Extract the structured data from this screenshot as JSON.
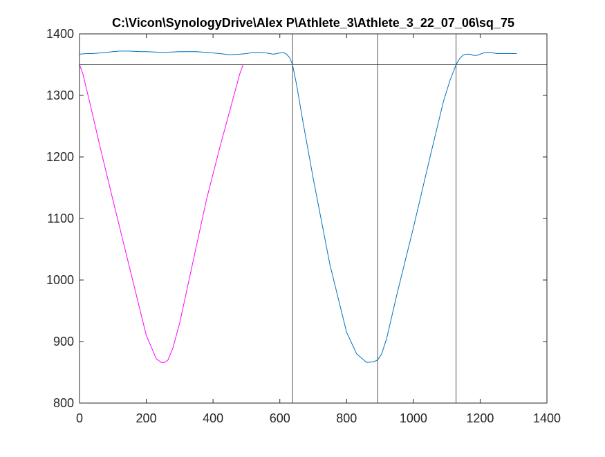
{
  "chart_data": {
    "type": "line",
    "title": "C:\\Vicon\\SynologyDrive\\Alex P\\Athlete_3\\Athlete_3_22_07_06\\sq_75",
    "xlabel": "",
    "ylabel": "",
    "xlim": [
      0,
      1400
    ],
    "ylim": [
      800,
      1400
    ],
    "xticks": [
      0,
      200,
      400,
      600,
      800,
      1000,
      1200,
      1400
    ],
    "yticks": [
      800,
      900,
      1000,
      1100,
      1200,
      1300,
      1400
    ],
    "grid": false,
    "legend": "none",
    "series": [
      {
        "color": "#0072BD",
        "x": [
          0,
          20,
          40,
          60,
          80,
          100,
          120,
          150,
          180,
          200,
          250,
          300,
          350,
          380,
          420,
          450,
          480,
          500,
          520,
          540,
          560,
          580,
          600,
          610,
          620,
          630,
          638,
          650,
          670,
          700,
          750,
          800,
          830,
          860,
          880,
          893,
          905,
          920,
          950,
          1000,
          1050,
          1090,
          1110,
          1128,
          1140,
          1150,
          1160,
          1170,
          1180,
          1190,
          1200,
          1210,
          1220,
          1230,
          1240,
          1250,
          1260,
          1280,
          1300,
          1310
        ],
        "y": [
          1367,
          1368,
          1368,
          1369,
          1370,
          1371,
          1372,
          1372,
          1371,
          1371,
          1370,
          1371,
          1371,
          1370,
          1368,
          1366,
          1367,
          1368,
          1370,
          1370,
          1369,
          1367,
          1369,
          1370,
          1367,
          1361,
          1350,
          1318,
          1255,
          1165,
          1025,
          915,
          880,
          866,
          867,
          870,
          880,
          905,
          975,
          1085,
          1200,
          1290,
          1325,
          1350,
          1361,
          1366,
          1367,
          1367,
          1365,
          1365,
          1367,
          1369,
          1370,
          1370,
          1369,
          1368,
          1368,
          1368,
          1368,
          1368
        ]
      },
      {
        "color": "#FF00FF",
        "x": [
          0,
          10,
          30,
          60,
          100,
          150,
          200,
          230,
          245,
          255,
          265,
          280,
          300,
          340,
          380,
          420,
          450,
          470,
          480,
          490
        ],
        "y": [
          1350,
          1335,
          1290,
          1220,
          1130,
          1020,
          910,
          872,
          866,
          866,
          870,
          890,
          930,
          1030,
          1130,
          1215,
          1275,
          1315,
          1335,
          1350
        ]
      }
    ],
    "hlines": [
      1350
    ],
    "vlines": [
      638,
      893,
      1128
    ],
    "reference_line_color": "#262626"
  }
}
